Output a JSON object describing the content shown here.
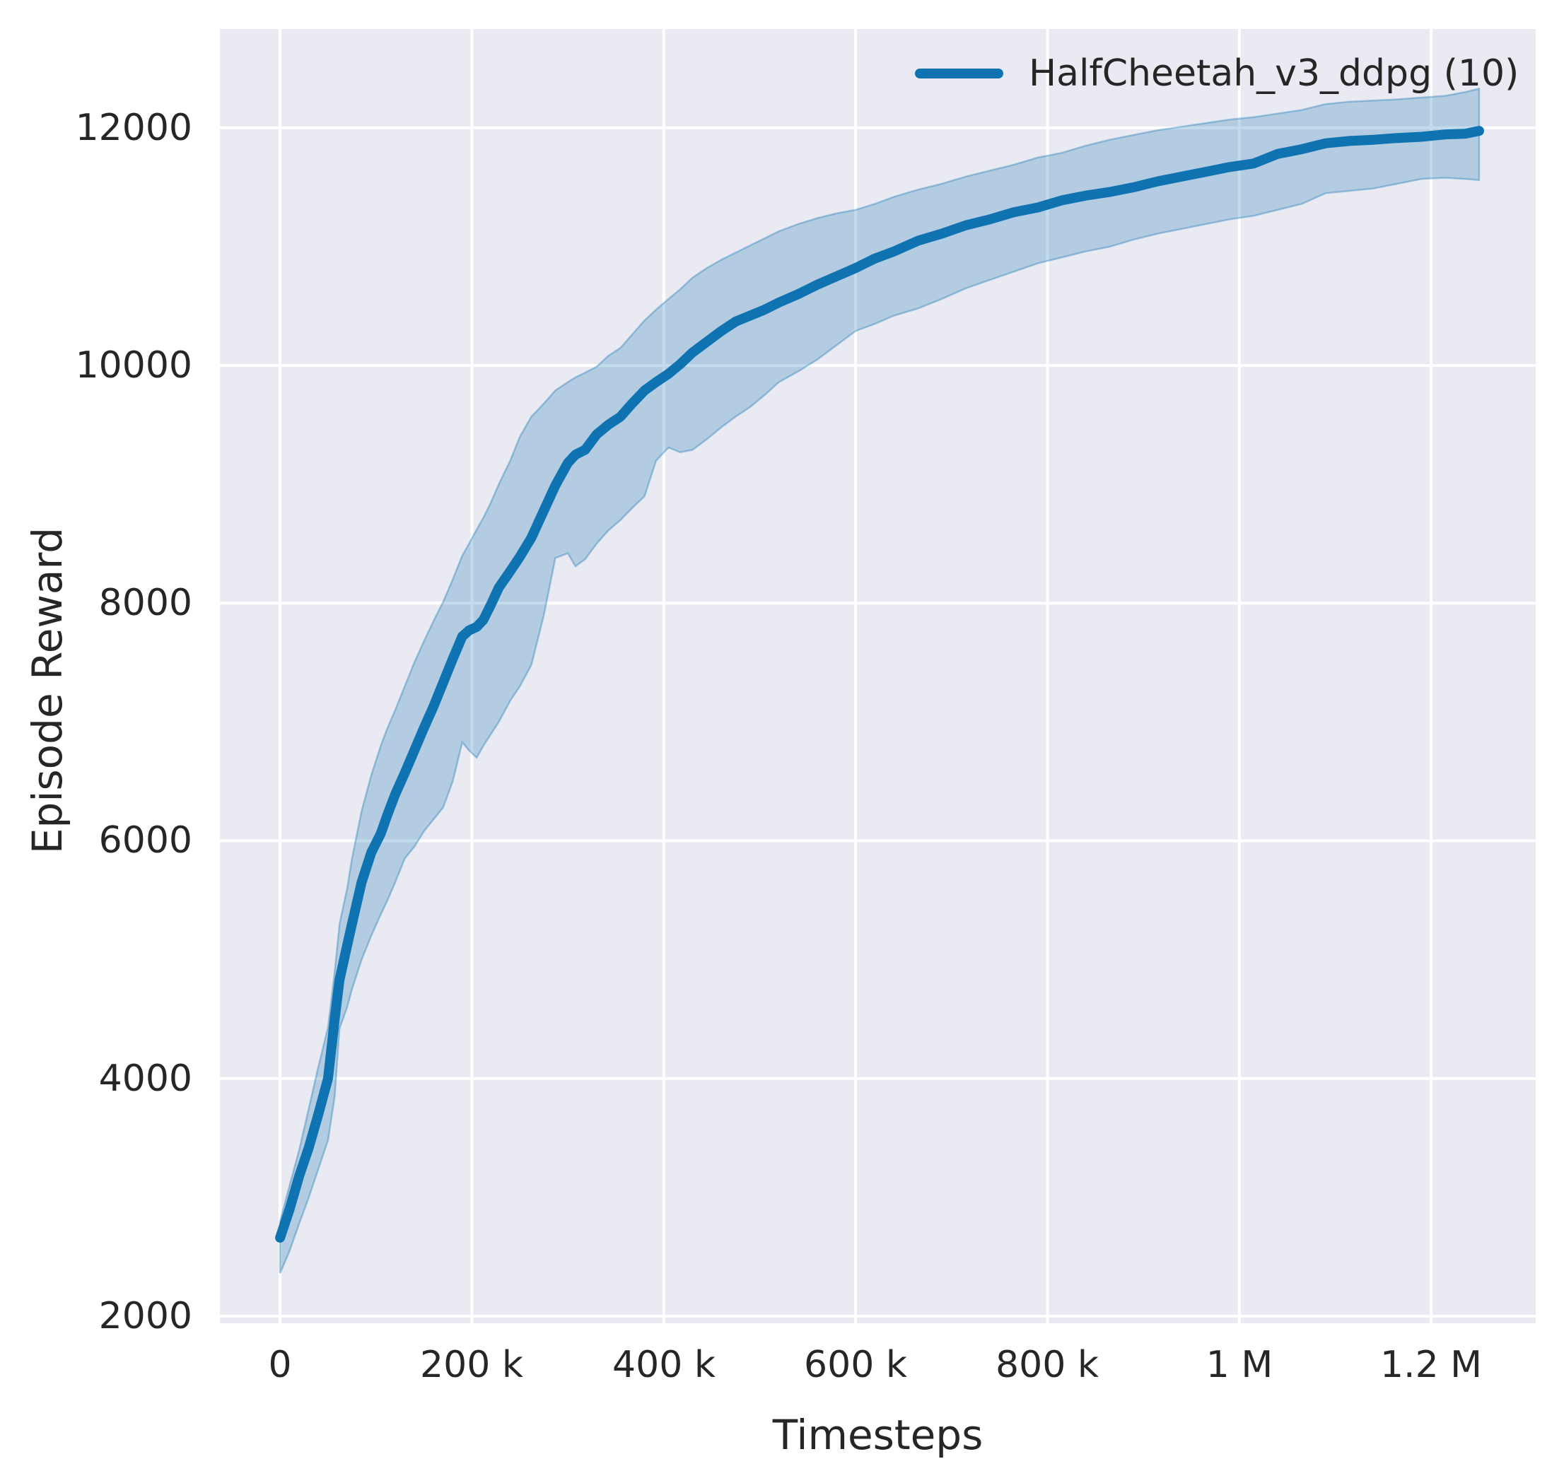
{
  "style": {
    "axes_background": "#EAEAF2",
    "grid_color": "#FFFFFF",
    "line_color": "#0F73B2",
    "band_opacity": 0.25,
    "text_color": "#262626"
  },
  "chart_data": {
    "type": "line",
    "title": "",
    "xlabel": "Timesteps",
    "ylabel": "Episode Reward",
    "grid": true,
    "legend_position": "upper right",
    "legend": [
      {
        "label": "HalfCheetah_v3_ddpg (10)",
        "color": "#0F73B2"
      }
    ],
    "xlim": [
      -62700,
      1309000
    ],
    "ylim": [
      1940,
      12832
    ],
    "x_ticks": [
      {
        "value": 0,
        "label": "0"
      },
      {
        "value": 200000,
        "label": "200 k"
      },
      {
        "value": 400000,
        "label": "400 k"
      },
      {
        "value": 600000,
        "label": "600 k"
      },
      {
        "value": 800000,
        "label": "800 k"
      },
      {
        "value": 1000000,
        "label": "1 M"
      },
      {
        "value": 1200000,
        "label": "1.2 M"
      }
    ],
    "y_ticks": [
      {
        "value": 2000,
        "label": "2000"
      },
      {
        "value": 4000,
        "label": "4000"
      },
      {
        "value": 6000,
        "label": "6000"
      },
      {
        "value": 8000,
        "label": "8000"
      },
      {
        "value": 10000,
        "label": "10000"
      },
      {
        "value": 12000,
        "label": "12000"
      }
    ],
    "series": [
      {
        "name": "HalfCheetah_v3_ddpg (10)",
        "color": "#0F73B2",
        "x_thousands": [
          0,
          10,
          20,
          30,
          40,
          50,
          57,
          62,
          70,
          75,
          85,
          95,
          105,
          112,
          120,
          130,
          140,
          150,
          160,
          170,
          180,
          190,
          197,
          205,
          212,
          220,
          228,
          240,
          250,
          262,
          275,
          287,
          300,
          308,
          318,
          330,
          342,
          355,
          367,
          380,
          392,
          405,
          417,
          430,
          445,
          460,
          475,
          490,
          505,
          520,
          540,
          560,
          580,
          600,
          620,
          640,
          665,
          690,
          715,
          740,
          765,
          790,
          815,
          840,
          865,
          890,
          915,
          940,
          965,
          990,
          1015,
          1040,
          1065,
          1090,
          1115,
          1140,
          1165,
          1190,
          1215,
          1235,
          1250
        ],
        "mean": [
          2660,
          2900,
          3180,
          3420,
          3700,
          4000,
          4500,
          4830,
          5120,
          5300,
          5650,
          5900,
          6060,
          6220,
          6390,
          6570,
          6760,
          6950,
          7130,
          7330,
          7530,
          7720,
          7770,
          7800,
          7860,
          7990,
          8130,
          8270,
          8390,
          8550,
          8780,
          8990,
          9180,
          9250,
          9290,
          9420,
          9500,
          9570,
          9680,
          9790,
          9860,
          9930,
          10010,
          10110,
          10200,
          10290,
          10370,
          10420,
          10470,
          10530,
          10600,
          10680,
          10750,
          10820,
          10900,
          10960,
          11050,
          11110,
          11180,
          11230,
          11290,
          11330,
          11390,
          11430,
          11460,
          11500,
          11550,
          11590,
          11630,
          11670,
          11700,
          11780,
          11820,
          11870,
          11890,
          11900,
          11915,
          11925,
          11945,
          11950,
          11975
        ],
        "band_low": [
          2360,
          2550,
          2780,
          3000,
          3240,
          3480,
          3850,
          4420,
          4600,
          4750,
          5000,
          5200,
          5380,
          5500,
          5650,
          5850,
          5950,
          6080,
          6180,
          6280,
          6500,
          6830,
          6760,
          6700,
          6800,
          6900,
          7000,
          7180,
          7300,
          7480,
          7900,
          8380,
          8420,
          8310,
          8370,
          8500,
          8610,
          8700,
          8800,
          8900,
          9200,
          9310,
          9270,
          9290,
          9380,
          9480,
          9570,
          9650,
          9750,
          9860,
          9950,
          10050,
          10170,
          10290,
          10350,
          10420,
          10480,
          10560,
          10650,
          10720,
          10790,
          10860,
          10910,
          10960,
          11000,
          11060,
          11110,
          11150,
          11190,
          11230,
          11260,
          11310,
          11360,
          11450,
          11470,
          11490,
          11530,
          11570,
          11580,
          11570,
          11560
        ],
        "band_high": [
          2800,
          3100,
          3400,
          3750,
          4100,
          4430,
          4900,
          5300,
          5600,
          5850,
          6250,
          6550,
          6800,
          6950,
          7100,
          7300,
          7500,
          7680,
          7850,
          8010,
          8200,
          8400,
          8500,
          8620,
          8720,
          8850,
          9000,
          9200,
          9400,
          9570,
          9680,
          9790,
          9860,
          9900,
          9940,
          9990,
          10080,
          10150,
          10260,
          10380,
          10470,
          10560,
          10640,
          10740,
          10820,
          10890,
          10950,
          11010,
          11070,
          11130,
          11190,
          11240,
          11280,
          11310,
          11360,
          11420,
          11480,
          11530,
          11590,
          11640,
          11690,
          11750,
          11790,
          11850,
          11900,
          11940,
          11980,
          12010,
          12040,
          12070,
          12090,
          12120,
          12150,
          12200,
          12220,
          12230,
          12240,
          12255,
          12270,
          12300,
          12330
        ]
      }
    ]
  }
}
